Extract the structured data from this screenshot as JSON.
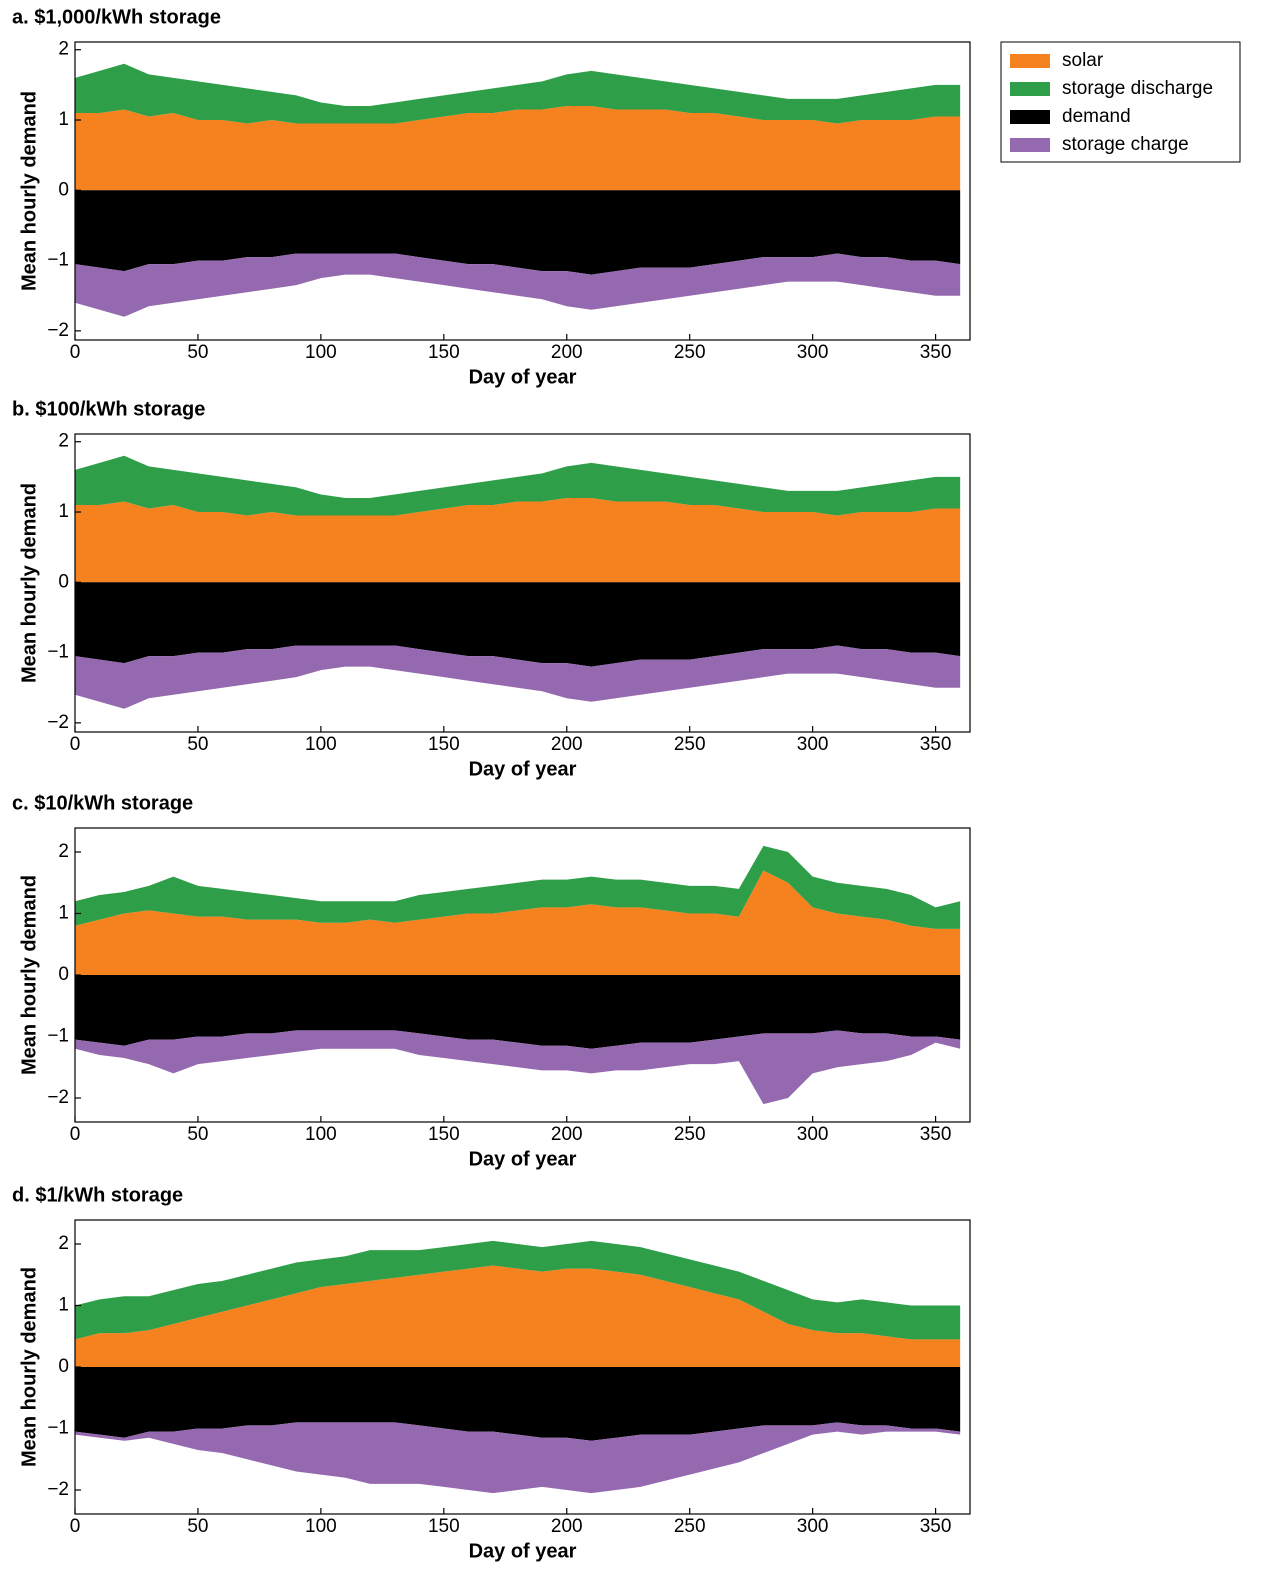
{
  "chart_data": [
    {
      "type": "area",
      "title": "a. $1,000/kWh storage",
      "xlabel": "Day of year",
      "ylabel": "Mean hourly demand",
      "legend": "outside-right",
      "x": [
        0,
        10,
        20,
        30,
        40,
        50,
        60,
        70,
        80,
        90,
        100,
        110,
        120,
        130,
        140,
        150,
        160,
        170,
        180,
        190,
        200,
        210,
        220,
        230,
        240,
        250,
        260,
        270,
        280,
        290,
        300,
        310,
        320,
        330,
        340,
        350,
        360
      ],
      "series": [
        {
          "name": "solar",
          "color": "#f5821f",
          "values": [
            1.1,
            1.1,
            1.15,
            1.05,
            1.1,
            1.0,
            1.0,
            0.95,
            1.0,
            0.95,
            0.95,
            0.95,
            0.95,
            0.95,
            1.0,
            1.05,
            1.1,
            1.1,
            1.15,
            1.15,
            1.2,
            1.2,
            1.15,
            1.15,
            1.15,
            1.1,
            1.1,
            1.05,
            1.0,
            1.0,
            1.0,
            0.95,
            1.0,
            1.0,
            1.0,
            1.05,
            1.05
          ]
        },
        {
          "name": "storage discharge",
          "color": "#2e9e48",
          "values": [
            0.5,
            0.6,
            0.65,
            0.6,
            0.5,
            0.55,
            0.5,
            0.5,
            0.4,
            0.4,
            0.3,
            0.25,
            0.25,
            0.3,
            0.3,
            0.3,
            0.3,
            0.35,
            0.35,
            0.4,
            0.45,
            0.5,
            0.5,
            0.45,
            0.4,
            0.4,
            0.35,
            0.35,
            0.35,
            0.3,
            0.3,
            0.35,
            0.35,
            0.4,
            0.45,
            0.45,
            0.45
          ]
        },
        {
          "name": "demand",
          "color": "#000000",
          "values": [
            -1.05,
            -1.1,
            -1.15,
            -1.05,
            -1.05,
            -1.0,
            -1.0,
            -0.95,
            -0.95,
            -0.9,
            -0.9,
            -0.9,
            -0.9,
            -0.9,
            -0.95,
            -1.0,
            -1.05,
            -1.05,
            -1.1,
            -1.15,
            -1.15,
            -1.2,
            -1.15,
            -1.1,
            -1.1,
            -1.1,
            -1.05,
            -1.0,
            -0.95,
            -0.95,
            -0.95,
            -0.9,
            -0.95,
            -0.95,
            -1.0,
            -1.0,
            -1.05
          ]
        },
        {
          "name": "storage charge",
          "color": "#9569b0",
          "values": [
            -0.55,
            -0.6,
            -0.65,
            -0.6,
            -0.55,
            -0.55,
            -0.5,
            -0.5,
            -0.45,
            -0.45,
            -0.35,
            -0.3,
            -0.3,
            -0.35,
            -0.35,
            -0.35,
            -0.35,
            -0.4,
            -0.4,
            -0.4,
            -0.5,
            -0.5,
            -0.5,
            -0.5,
            -0.45,
            -0.4,
            -0.4,
            -0.4,
            -0.4,
            -0.35,
            -0.35,
            -0.4,
            -0.4,
            -0.45,
            -0.45,
            -0.5,
            -0.45
          ]
        }
      ],
      "xlim": [
        0,
        364
      ],
      "ylim": [
        -2.13,
        2.11
      ],
      "xticks": [
        0,
        50,
        100,
        150,
        200,
        250,
        300,
        350
      ],
      "yticks": [
        {
          "value": -2,
          "label": "−2"
        },
        {
          "value": -1,
          "label": "−1"
        },
        0,
        1,
        2
      ]
    },
    {
      "type": "area",
      "title": "b. $100/kWh storage",
      "xlabel": "Day of year",
      "ylabel": "Mean hourly demand",
      "x": [
        0,
        10,
        20,
        30,
        40,
        50,
        60,
        70,
        80,
        90,
        100,
        110,
        120,
        130,
        140,
        150,
        160,
        170,
        180,
        190,
        200,
        210,
        220,
        230,
        240,
        250,
        260,
        270,
        280,
        290,
        300,
        310,
        320,
        330,
        340,
        350,
        360
      ],
      "series": [
        {
          "name": "solar",
          "color": "#f5821f",
          "values": [
            1.1,
            1.1,
            1.15,
            1.05,
            1.1,
            1.0,
            1.0,
            0.95,
            1.0,
            0.95,
            0.95,
            0.95,
            0.95,
            0.95,
            1.0,
            1.05,
            1.1,
            1.1,
            1.15,
            1.15,
            1.2,
            1.2,
            1.15,
            1.15,
            1.15,
            1.1,
            1.1,
            1.05,
            1.0,
            1.0,
            1.0,
            0.95,
            1.0,
            1.0,
            1.0,
            1.05,
            1.05
          ]
        },
        {
          "name": "storage discharge",
          "color": "#2e9e48",
          "values": [
            0.5,
            0.6,
            0.65,
            0.6,
            0.5,
            0.55,
            0.5,
            0.5,
            0.4,
            0.4,
            0.3,
            0.25,
            0.25,
            0.3,
            0.3,
            0.3,
            0.3,
            0.35,
            0.35,
            0.4,
            0.45,
            0.5,
            0.5,
            0.45,
            0.4,
            0.4,
            0.35,
            0.35,
            0.35,
            0.3,
            0.3,
            0.35,
            0.35,
            0.4,
            0.45,
            0.45,
            0.45
          ]
        },
        {
          "name": "demand",
          "color": "#000000",
          "values": [
            -1.05,
            -1.1,
            -1.15,
            -1.05,
            -1.05,
            -1.0,
            -1.0,
            -0.95,
            -0.95,
            -0.9,
            -0.9,
            -0.9,
            -0.9,
            -0.9,
            -0.95,
            -1.0,
            -1.05,
            -1.05,
            -1.1,
            -1.15,
            -1.15,
            -1.2,
            -1.15,
            -1.1,
            -1.1,
            -1.1,
            -1.05,
            -1.0,
            -0.95,
            -0.95,
            -0.95,
            -0.9,
            -0.95,
            -0.95,
            -1.0,
            -1.0,
            -1.05
          ]
        },
        {
          "name": "storage charge",
          "color": "#9569b0",
          "values": [
            -0.55,
            -0.6,
            -0.65,
            -0.6,
            -0.55,
            -0.55,
            -0.5,
            -0.5,
            -0.45,
            -0.45,
            -0.35,
            -0.3,
            -0.3,
            -0.35,
            -0.35,
            -0.35,
            -0.35,
            -0.4,
            -0.4,
            -0.4,
            -0.5,
            -0.5,
            -0.5,
            -0.5,
            -0.45,
            -0.4,
            -0.4,
            -0.4,
            -0.4,
            -0.35,
            -0.35,
            -0.4,
            -0.4,
            -0.45,
            -0.45,
            -0.5,
            -0.45
          ]
        }
      ],
      "xlim": [
        0,
        364
      ],
      "ylim": [
        -2.13,
        2.11
      ],
      "xticks": [
        0,
        50,
        100,
        150,
        200,
        250,
        300,
        350
      ],
      "yticks": [
        {
          "value": -2,
          "label": "−2"
        },
        {
          "value": -1,
          "label": "−1"
        },
        0,
        1,
        2
      ]
    },
    {
      "type": "area",
      "title": "c. $10/kWh storage",
      "xlabel": "Day of year",
      "ylabel": "Mean hourly demand",
      "x": [
        0,
        10,
        20,
        30,
        40,
        50,
        60,
        70,
        80,
        90,
        100,
        110,
        120,
        130,
        140,
        150,
        160,
        170,
        180,
        190,
        200,
        210,
        220,
        230,
        240,
        250,
        260,
        270,
        280,
        290,
        300,
        310,
        320,
        330,
        340,
        350,
        360
      ],
      "series": [
        {
          "name": "solar",
          "color": "#f5821f",
          "values": [
            0.8,
            0.9,
            1.0,
            1.05,
            1.0,
            0.95,
            0.95,
            0.9,
            0.9,
            0.9,
            0.85,
            0.85,
            0.9,
            0.85,
            0.9,
            0.95,
            1.0,
            1.0,
            1.05,
            1.1,
            1.1,
            1.15,
            1.1,
            1.1,
            1.05,
            1.0,
            1.0,
            0.95,
            1.7,
            1.5,
            1.1,
            1.0,
            0.95,
            0.9,
            0.8,
            0.75,
            0.75
          ]
        },
        {
          "name": "storage discharge",
          "color": "#2e9e48",
          "values": [
            0.4,
            0.4,
            0.35,
            0.4,
            0.6,
            0.5,
            0.45,
            0.45,
            0.4,
            0.35,
            0.35,
            0.35,
            0.3,
            0.35,
            0.4,
            0.4,
            0.4,
            0.45,
            0.45,
            0.45,
            0.45,
            0.45,
            0.45,
            0.45,
            0.45,
            0.45,
            0.45,
            0.45,
            0.4,
            0.5,
            0.5,
            0.5,
            0.5,
            0.5,
            0.5,
            0.35,
            0.45
          ]
        },
        {
          "name": "demand",
          "color": "#000000",
          "values": [
            -1.05,
            -1.1,
            -1.15,
            -1.05,
            -1.05,
            -1.0,
            -1.0,
            -0.95,
            -0.95,
            -0.9,
            -0.9,
            -0.9,
            -0.9,
            -0.9,
            -0.95,
            -1.0,
            -1.05,
            -1.05,
            -1.1,
            -1.15,
            -1.15,
            -1.2,
            -1.15,
            -1.1,
            -1.1,
            -1.1,
            -1.05,
            -1.0,
            -0.95,
            -0.95,
            -0.95,
            -0.9,
            -0.95,
            -0.95,
            -1.0,
            -1.0,
            -1.05
          ]
        },
        {
          "name": "storage charge",
          "color": "#9569b0",
          "values": [
            -0.15,
            -0.2,
            -0.2,
            -0.4,
            -0.55,
            -0.45,
            -0.4,
            -0.4,
            -0.35,
            -0.35,
            -0.3,
            -0.3,
            -0.3,
            -0.3,
            -0.35,
            -0.35,
            -0.35,
            -0.4,
            -0.4,
            -0.4,
            -0.4,
            -0.4,
            -0.4,
            -0.45,
            -0.4,
            -0.35,
            -0.4,
            -0.4,
            -1.15,
            -1.05,
            -0.65,
            -0.6,
            -0.5,
            -0.45,
            -0.3,
            -0.1,
            -0.15
          ]
        }
      ],
      "xlim": [
        0,
        364
      ],
      "ylim": [
        -2.39,
        2.39
      ],
      "xticks": [
        0,
        50,
        100,
        150,
        200,
        250,
        300,
        350
      ],
      "yticks": [
        {
          "value": -2,
          "label": "−2"
        },
        {
          "value": -1,
          "label": "−1"
        },
        0,
        1,
        2
      ]
    },
    {
      "type": "area",
      "title": "d. $1/kWh storage",
      "xlabel": "Day of year",
      "ylabel": "Mean hourly demand",
      "x": [
        0,
        10,
        20,
        30,
        40,
        50,
        60,
        70,
        80,
        90,
        100,
        110,
        120,
        130,
        140,
        150,
        160,
        170,
        180,
        190,
        200,
        210,
        220,
        230,
        240,
        250,
        260,
        270,
        280,
        290,
        300,
        310,
        320,
        330,
        340,
        350,
        360
      ],
      "series": [
        {
          "name": "solar",
          "color": "#f5821f",
          "values": [
            0.45,
            0.55,
            0.55,
            0.6,
            0.7,
            0.8,
            0.9,
            1.0,
            1.1,
            1.2,
            1.3,
            1.35,
            1.4,
            1.45,
            1.5,
            1.55,
            1.6,
            1.65,
            1.6,
            1.55,
            1.6,
            1.6,
            1.55,
            1.5,
            1.4,
            1.3,
            1.2,
            1.1,
            0.9,
            0.7,
            0.6,
            0.55,
            0.55,
            0.5,
            0.45,
            0.45,
            0.45
          ]
        },
        {
          "name": "storage discharge",
          "color": "#2e9e48",
          "values": [
            0.55,
            0.55,
            0.6,
            0.55,
            0.55,
            0.55,
            0.5,
            0.5,
            0.5,
            0.5,
            0.45,
            0.45,
            0.5,
            0.45,
            0.4,
            0.4,
            0.4,
            0.4,
            0.4,
            0.4,
            0.4,
            0.45,
            0.45,
            0.45,
            0.45,
            0.45,
            0.45,
            0.45,
            0.5,
            0.55,
            0.5,
            0.5,
            0.55,
            0.55,
            0.55,
            0.55,
            0.55
          ]
        },
        {
          "name": "demand",
          "color": "#000000",
          "values": [
            -1.05,
            -1.1,
            -1.15,
            -1.05,
            -1.05,
            -1.0,
            -1.0,
            -0.95,
            -0.95,
            -0.9,
            -0.9,
            -0.9,
            -0.9,
            -0.9,
            -0.95,
            -1.0,
            -1.05,
            -1.05,
            -1.1,
            -1.15,
            -1.15,
            -1.2,
            -1.15,
            -1.1,
            -1.1,
            -1.1,
            -1.05,
            -1.0,
            -0.95,
            -0.95,
            -0.95,
            -0.9,
            -0.95,
            -0.95,
            -1.0,
            -1.0,
            -1.05
          ]
        },
        {
          "name": "storage charge",
          "color": "#9569b0",
          "values": [
            -0.05,
            -0.05,
            -0.05,
            -0.1,
            -0.2,
            -0.35,
            -0.4,
            -0.55,
            -0.65,
            -0.8,
            -0.85,
            -0.9,
            -1.0,
            -1.0,
            -0.95,
            -0.95,
            -0.95,
            -1.0,
            -0.9,
            -0.8,
            -0.85,
            -0.85,
            -0.85,
            -0.85,
            -0.75,
            -0.65,
            -0.6,
            -0.55,
            -0.45,
            -0.3,
            -0.15,
            -0.15,
            -0.15,
            -0.1,
            -0.05,
            -0.05,
            -0.05
          ]
        }
      ],
      "xlim": [
        0,
        364
      ],
      "ylim": [
        -2.39,
        2.39
      ],
      "xticks": [
        0,
        50,
        100,
        150,
        200,
        250,
        300,
        350
      ],
      "yticks": [
        {
          "value": -2,
          "label": "−2"
        },
        {
          "value": -1,
          "label": "−1"
        },
        0,
        1,
        2
      ]
    }
  ]
}
